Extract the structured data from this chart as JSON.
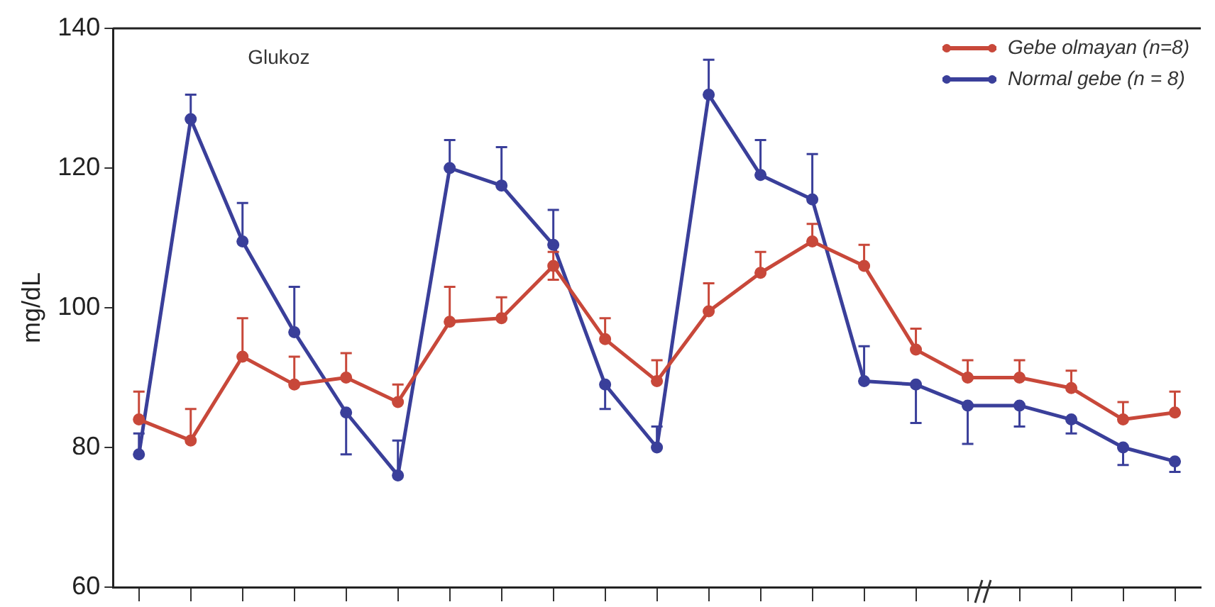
{
  "chart_data": {
    "type": "line",
    "title": "Glukoz",
    "ylabel": "mg/dL",
    "categories": [
      null,
      null,
      null,
      null,
      null,
      null,
      null,
      null,
      null,
      null,
      null,
      null,
      null,
      null,
      null,
      null,
      null,
      null,
      null,
      null,
      null
    ],
    "ylim": [
      60,
      140
    ],
    "yticks": [
      60,
      80,
      100,
      120,
      140
    ],
    "tick_labels": "y",
    "grid": false,
    "legend": "top right",
    "marker": "circle",
    "line_style": "solid",
    "series": [
      {
        "name": "Gebe olmayan (n=8)",
        "color": "#c8483a",
        "values": [
          84,
          81,
          93,
          89,
          90,
          86.5,
          98,
          98.5,
          106,
          95.5,
          89.5,
          99.5,
          105,
          109.5,
          106,
          94,
          90,
          90,
          88.5,
          84,
          85
        ],
        "errors": [
          [
            84,
            88
          ],
          [
            81,
            85.5
          ],
          [
            93,
            98.5
          ],
          [
            89,
            93
          ],
          [
            90,
            93.5
          ],
          [
            86.5,
            89
          ],
          [
            98,
            103
          ],
          [
            98.5,
            101.5
          ],
          [
            104,
            108
          ],
          [
            95.5,
            98.5
          ],
          [
            89.5,
            92.5
          ],
          [
            99.5,
            103.5
          ],
          [
            105,
            108
          ],
          [
            109.5,
            112
          ],
          [
            106,
            109
          ],
          [
            94,
            97
          ],
          [
            90,
            92.5
          ],
          [
            90,
            92.5
          ],
          [
            88.5,
            91
          ],
          [
            84,
            86.5
          ],
          [
            85,
            88
          ]
        ]
      },
      {
        "name": "Normal gebe (n = 8)",
        "color": "#3a3f9a",
        "values": [
          79,
          127,
          109.5,
          96.5,
          85,
          76,
          120,
          117.5,
          109,
          89,
          80,
          130.5,
          119,
          115.5,
          89.5,
          89,
          86,
          86,
          84,
          80,
          78
        ],
        "errors": [
          [
            79,
            82
          ],
          [
            127,
            130.5
          ],
          [
            109.5,
            115
          ],
          [
            96.5,
            103
          ],
          [
            79,
            85
          ],
          [
            76,
            81
          ],
          [
            120,
            124
          ],
          [
            117.5,
            123
          ],
          [
            109,
            114
          ],
          [
            85.5,
            89
          ],
          [
            80,
            83
          ],
          [
            130.5,
            135.5
          ],
          [
            119,
            124
          ],
          [
            115.5,
            122
          ],
          [
            89.5,
            94.5
          ],
          [
            83.5,
            89
          ],
          [
            80.5,
            86
          ],
          [
            83,
            86
          ],
          [
            82,
            84
          ],
          [
            77.5,
            80
          ],
          [
            76.5,
            78
          ]
        ]
      }
    ]
  }
}
